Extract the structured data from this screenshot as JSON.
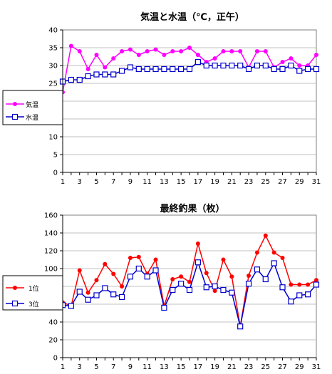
{
  "chart_data": [
    {
      "type": "line",
      "title": "気温と水温（℃，正午）",
      "x": [
        1,
        2,
        3,
        4,
        5,
        6,
        7,
        8,
        9,
        10,
        11,
        12,
        13,
        14,
        15,
        16,
        17,
        18,
        19,
        20,
        21,
        22,
        23,
        24,
        25,
        26,
        27,
        28,
        29,
        30,
        31
      ],
      "xticks": [
        "1",
        "3",
        "5",
        "7",
        "9",
        "11",
        "13",
        "15",
        "17",
        "19",
        "21",
        "23",
        "25",
        "27",
        "29",
        "31"
      ],
      "ylim": [
        0,
        40
      ],
      "yticks": [
        "0",
        "5",
        "10",
        "15",
        "20",
        "25",
        "30",
        "35",
        "40"
      ],
      "grid": true,
      "legend_position": "left",
      "series": [
        {
          "name": "気温",
          "color": "#ff00ff",
          "marker": "circle-filled",
          "values": [
            22.5,
            35.5,
            34,
            29,
            33,
            29.5,
            32,
            34,
            34.5,
            33,
            34,
            34.5,
            33,
            34,
            34,
            35,
            33,
            31,
            32,
            34,
            34,
            34,
            29.5,
            34,
            34,
            29.5,
            31,
            32,
            30,
            30,
            33
          ]
        },
        {
          "name": "水温",
          "color": "#0000cc",
          "marker": "square-open",
          "values": [
            25.5,
            26,
            26,
            27,
            27.5,
            27.5,
            27.5,
            28.5,
            29.5,
            29,
            29,
            29,
            29,
            29,
            29,
            29,
            31,
            30,
            30,
            30,
            30,
            30,
            29,
            30,
            30,
            29,
            29,
            30,
            28.5,
            29,
            29
          ]
        }
      ]
    },
    {
      "type": "line",
      "title": "最終釣果（枚）",
      "x": [
        1,
        2,
        3,
        4,
        5,
        6,
        7,
        8,
        9,
        10,
        11,
        12,
        13,
        14,
        15,
        16,
        17,
        18,
        19,
        20,
        21,
        22,
        23,
        24,
        25,
        26,
        27,
        28,
        29,
        30,
        31
      ],
      "xticks": [
        "1",
        "3",
        "5",
        "7",
        "9",
        "11",
        "13",
        "15",
        "17",
        "19",
        "21",
        "23",
        "25",
        "27",
        "29",
        "31"
      ],
      "ylim": [
        0,
        160
      ],
      "yticks": [
        "0",
        "20",
        "40",
        "60",
        "80",
        "100",
        "120",
        "140",
        "160"
      ],
      "grid": true,
      "legend_position": "left",
      "series": [
        {
          "name": "1位",
          "color": "#ff0000",
          "marker": "circle-filled",
          "values": [
            62,
            58,
            98,
            73,
            87,
            105,
            94,
            80,
            112,
            113,
            94,
            110,
            58,
            88,
            91,
            85,
            128,
            95,
            75,
            110,
            91,
            35,
            92,
            118,
            137,
            118,
            112,
            82,
            82,
            82,
            87
          ]
        },
        {
          "name": "3位",
          "color": "#0000cc",
          "marker": "square-open",
          "values": [
            59,
            58,
            74,
            65,
            70,
            78,
            71,
            68,
            91,
            100,
            91,
            98,
            56,
            76,
            83,
            76,
            107,
            79,
            80,
            76,
            73,
            35,
            83,
            99,
            88,
            106,
            79,
            63,
            70,
            71,
            82
          ]
        }
      ]
    }
  ]
}
